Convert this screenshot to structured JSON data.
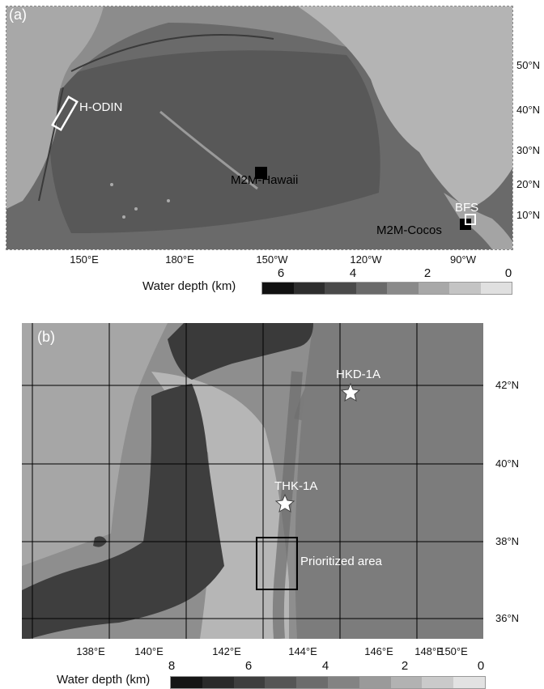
{
  "panel_a": {
    "label": "(a)",
    "lat_labels": [
      "50°N",
      "40°N",
      "30°N",
      "20°N",
      "10°N"
    ],
    "lon_labels": [
      "150°E",
      "180°E",
      "150°W",
      "120°W",
      "90°W"
    ],
    "sites": {
      "h_odin": "H-ODIN",
      "m2m_hawaii": "M2M-Hawaii",
      "m2m_cocos": "M2M-Cocos",
      "bfs": "BFS"
    },
    "legend": {
      "title": "Water depth (km)",
      "ticks": [
        "6",
        "4",
        "2",
        "0"
      ],
      "colors": [
        "#111111",
        "#2e2e2e",
        "#4a4a4a",
        "#6a6a6a",
        "#8a8a8a",
        "#a8a8a8",
        "#c4c4c4",
        "#e0e0e0"
      ]
    }
  },
  "panel_b": {
    "label": "(b)",
    "lat_labels": [
      "42°N",
      "40°N",
      "38°N",
      "36°N"
    ],
    "lon_labels": [
      "138°E",
      "140°E",
      "142°E",
      "144°E",
      "146°E",
      "148°E",
      "150°E"
    ],
    "stations": {
      "hkd": "HKD-1A",
      "thk": "THK-1A"
    },
    "prioritized_area": "Prioritized area",
    "legend": {
      "title": "Water depth (km)",
      "ticks": [
        "8",
        "6",
        "4",
        "2",
        "0"
      ],
      "colors": [
        "#151515",
        "#2a2a2a",
        "#3e3e3e",
        "#555555",
        "#6c6c6c",
        "#838383",
        "#9a9a9a",
        "#b2b2b2",
        "#cacaca",
        "#e2e2e2"
      ]
    }
  }
}
